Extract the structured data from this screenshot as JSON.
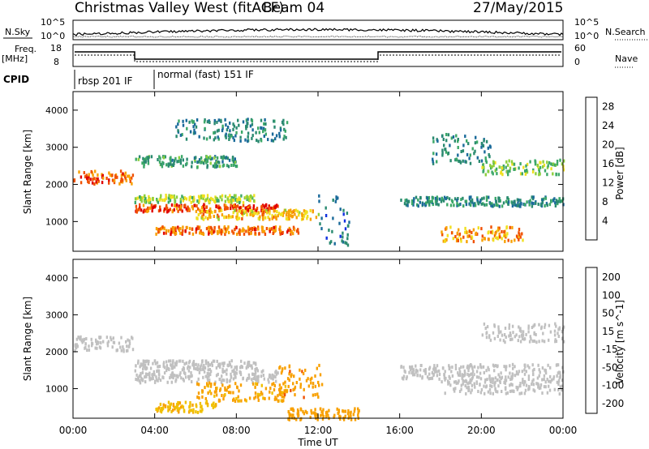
{
  "header": {
    "title": "Christmas Valley West (fitACF)",
    "beam": "Beam 04",
    "date": "27/May/2015"
  },
  "strips": {
    "nsky_label": "N.Sky",
    "nsky_ticks": [
      "10^5",
      "10^0"
    ],
    "nsearch_label": "N.Search",
    "freq_label_1": "Freq.",
    "freq_label_2": "[MHz]",
    "freq_ticks": [
      "18",
      "8"
    ],
    "nave_label": "Nave",
    "nave_ticks": [
      "60",
      "0"
    ],
    "cpid_label": "CPID",
    "cpid_segments": [
      "rbsp 201 IF",
      "normal (fast) 151 IF"
    ]
  },
  "colors": {
    "power_scale": [
      "#1030e0",
      "#1a6a9a",
      "#2a8a70",
      "#3ca868",
      "#8ccf3c",
      "#f0e020",
      "#f8a000",
      "#f05000",
      "#e00000"
    ],
    "velocity_scale": [
      "#e00000",
      "#f05000",
      "#f8a000",
      "#f0c000",
      "#c0c0c0",
      "#c0c0c0",
      "#40b040",
      "#3a7a8a",
      "#1a6aa0",
      "#2020c0"
    ]
  },
  "chart_data": [
    {
      "type": "heatmap",
      "panel": "power",
      "xlabel": "",
      "ylabel": "Slant Range [km]",
      "y_ticks": [
        1000,
        2000,
        3000,
        4000
      ],
      "ylim": [
        200,
        4500
      ],
      "colorbar_label": "Power [dB]",
      "colorbar_ticks": [
        4,
        8,
        12,
        16,
        20,
        24,
        28
      ],
      "colorbar_range": [
        0,
        30
      ],
      "bands": [
        {
          "t": [
            0.0,
            2.9
          ],
          "r": [
            2050,
            2400
          ],
          "v": 24
        },
        {
          "t": [
            3.0,
            10.0
          ],
          "r": [
            1300,
            1500
          ],
          "v": 26
        },
        {
          "t": [
            3.0,
            9.0
          ],
          "r": [
            1550,
            1750
          ],
          "v": 16
        },
        {
          "t": [
            4.0,
            11.0
          ],
          "r": [
            700,
            900
          ],
          "v": 24
        },
        {
          "t": [
            6.0,
            12.0
          ],
          "r": [
            1100,
            1350
          ],
          "v": 20
        },
        {
          "t": [
            3.0,
            8.0
          ],
          "r": [
            2500,
            2800
          ],
          "v": 10
        },
        {
          "t": [
            5.0,
            10.5
          ],
          "r": [
            3200,
            3800
          ],
          "v": 8
        },
        {
          "t": [
            16.0,
            24.0
          ],
          "r": [
            1450,
            1700
          ],
          "v": 8
        },
        {
          "t": [
            18.0,
            22.0
          ],
          "r": [
            500,
            900
          ],
          "v": 22
        },
        {
          "t": [
            20.0,
            24.0
          ],
          "r": [
            2300,
            2700
          ],
          "v": 14
        },
        {
          "t": [
            17.5,
            20.5
          ],
          "r": [
            2600,
            3400
          ],
          "v": 8
        },
        {
          "t": [
            12.0,
            13.5
          ],
          "r": [
            400,
            1800
          ],
          "v": 6
        }
      ]
    },
    {
      "type": "heatmap",
      "panel": "velocity",
      "xlabel": "Time UT",
      "ylabel": "Slant Range [km]",
      "x_ticks": [
        "00:00",
        "04:00",
        "08:00",
        "12:00",
        "16:00",
        "20:00",
        "00:00"
      ],
      "y_ticks": [
        1000,
        2000,
        3000,
        4000
      ],
      "ylim": [
        200,
        4500
      ],
      "colorbar_label": "Velocity [m s^-1]",
      "colorbar_ticks": [
        200,
        100,
        50,
        15,
        -15,
        -50,
        -100,
        -200
      ],
      "bands": [
        {
          "t": [
            0.0,
            2.9
          ],
          "r": [
            2050,
            2450
          ],
          "v": 0
        },
        {
          "t": [
            3.0,
            10.0
          ],
          "r": [
            1200,
            1550
          ],
          "v": 0
        },
        {
          "t": [
            3.0,
            9.0
          ],
          "r": [
            1550,
            1800
          ],
          "v": 0
        },
        {
          "t": [
            6.0,
            10.5
          ],
          "r": [
            700,
            1200
          ],
          "v": -60
        },
        {
          "t": [
            10.0,
            12.2
          ],
          "r": [
            800,
            1700
          ],
          "v": -90
        },
        {
          "t": [
            4.0,
            7.0
          ],
          "r": [
            400,
            700
          ],
          "v": -40
        },
        {
          "t": [
            16.0,
            24.0
          ],
          "r": [
            1300,
            1700
          ],
          "v": 0
        },
        {
          "t": [
            18.0,
            24.0
          ],
          "r": [
            900,
            1300
          ],
          "v": 0
        },
        {
          "t": [
            20.0,
            24.0
          ],
          "r": [
            2300,
            2800
          ],
          "v": 0
        },
        {
          "t": [
            10.5,
            14.0
          ],
          "r": [
            200,
            500
          ],
          "v": -80
        }
      ]
    }
  ]
}
